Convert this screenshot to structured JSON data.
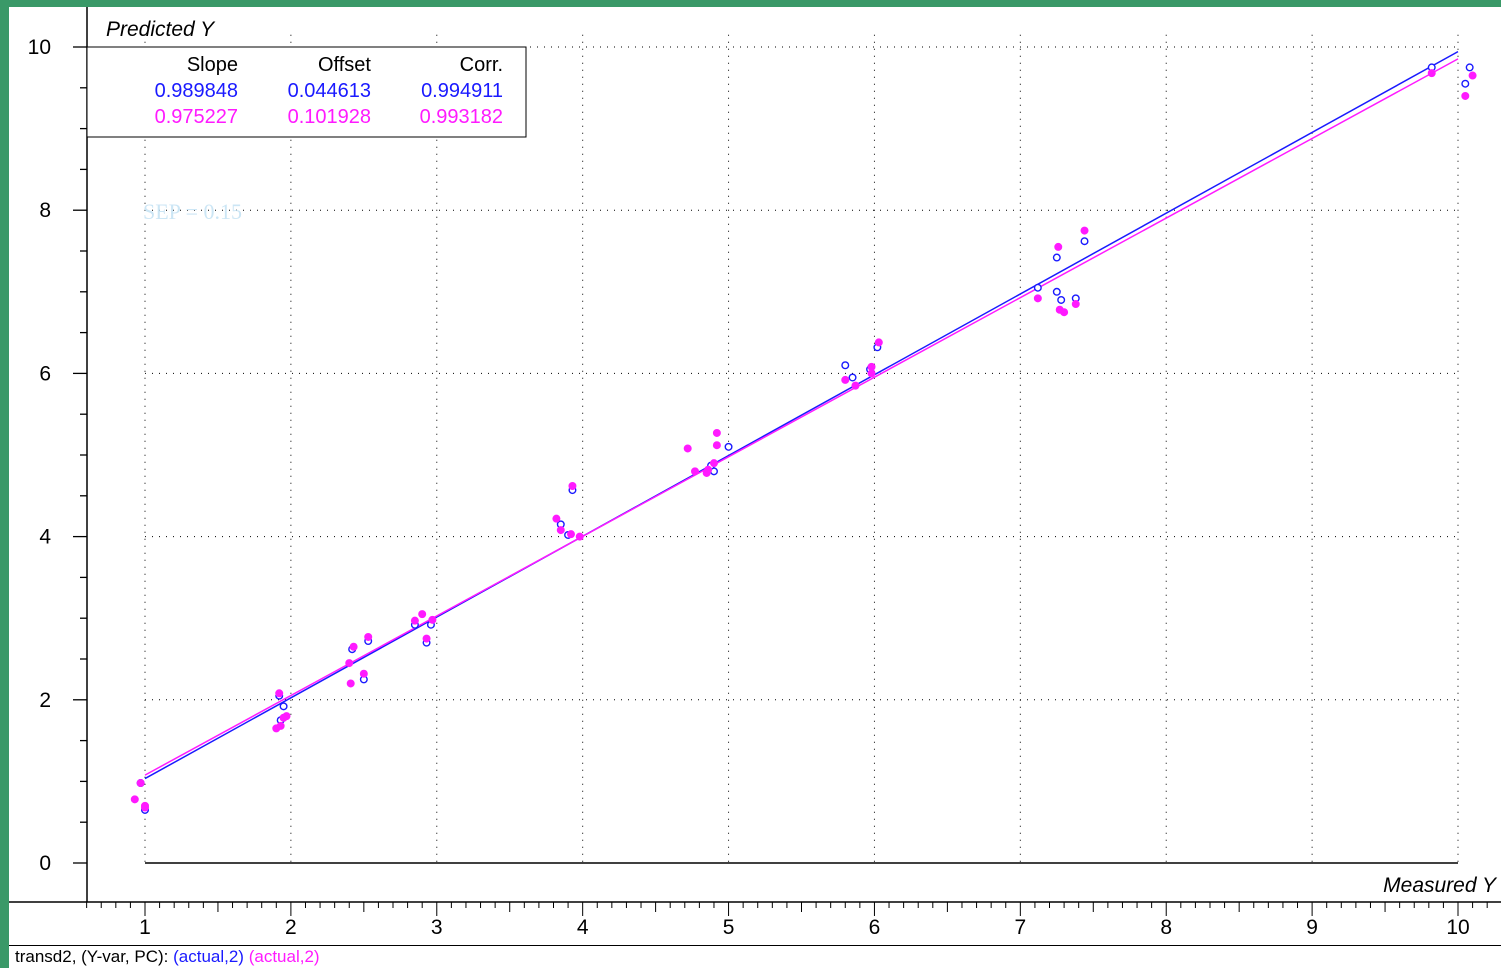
{
  "colors": {
    "background": "#3a9968",
    "series_blue": "#1a1aff",
    "series_magenta": "#ff1aff",
    "sep_text": "#cce6f5"
  },
  "chart_data": {
    "type": "scatter",
    "title": "",
    "xlabel": "Measured Y",
    "ylabel": "Predicted Y",
    "xlim": [
      0.6,
      10.3
    ],
    "ylim": [
      -0.45,
      10.2
    ],
    "xticks": [
      1,
      2,
      3,
      4,
      5,
      6,
      7,
      8,
      9,
      10
    ],
    "yticks": [
      0,
      2,
      4,
      6,
      8,
      10
    ],
    "grid": true,
    "annotation": "SEP = 0.15",
    "stats_table": {
      "headers": [
        "Slope",
        "Offset",
        "Corr."
      ],
      "rows": [
        [
          "0.989848",
          "0.044613",
          "0.994911"
        ],
        [
          "0.975227",
          "0.101928",
          "0.993182"
        ]
      ]
    },
    "series": [
      {
        "color": "#1a1aff",
        "marker": "open-circle",
        "fit": {
          "slope": 0.989848,
          "offset": 0.044613
        },
        "points": [
          [
            0.97,
            0.98
          ],
          [
            1.0,
            0.65
          ],
          [
            1.92,
            2.05
          ],
          [
            1.95,
            1.92
          ],
          [
            1.93,
            1.75
          ],
          [
            2.42,
            2.62
          ],
          [
            2.5,
            2.25
          ],
          [
            2.53,
            2.72
          ],
          [
            2.85,
            2.92
          ],
          [
            2.93,
            2.7
          ],
          [
            2.96,
            2.92
          ],
          [
            3.85,
            4.15
          ],
          [
            3.9,
            4.02
          ],
          [
            3.93,
            4.57
          ],
          [
            4.9,
            4.8
          ],
          [
            4.88,
            4.87
          ],
          [
            5.0,
            5.1
          ],
          [
            5.8,
            6.1
          ],
          [
            5.85,
            5.95
          ],
          [
            5.97,
            6.05
          ],
          [
            6.02,
            6.32
          ],
          [
            7.12,
            7.05
          ],
          [
            7.25,
            7.42
          ],
          [
            7.25,
            7.0
          ],
          [
            7.28,
            6.9
          ],
          [
            7.38,
            6.92
          ],
          [
            7.44,
            7.62
          ],
          [
            9.82,
            9.75
          ],
          [
            10.05,
            9.55
          ],
          [
            10.08,
            9.75
          ]
        ]
      },
      {
        "color": "#ff1aff",
        "marker": "filled-circle",
        "fit": {
          "slope": 0.975227,
          "offset": 0.101928
        },
        "points": [
          [
            0.93,
            0.78
          ],
          [
            0.97,
            0.98
          ],
          [
            1.0,
            0.7
          ],
          [
            1.0,
            0.68
          ],
          [
            1.92,
            2.08
          ],
          [
            1.9,
            1.65
          ],
          [
            1.93,
            1.68
          ],
          [
            1.95,
            1.78
          ],
          [
            1.97,
            1.8
          ],
          [
            2.4,
            2.45
          ],
          [
            2.41,
            2.2
          ],
          [
            2.43,
            2.65
          ],
          [
            2.5,
            2.32
          ],
          [
            2.53,
            2.77
          ],
          [
            2.85,
            2.97
          ],
          [
            2.9,
            3.05
          ],
          [
            2.93,
            2.75
          ],
          [
            2.97,
            2.98
          ],
          [
            3.82,
            4.22
          ],
          [
            3.85,
            4.08
          ],
          [
            3.92,
            4.03
          ],
          [
            3.93,
            4.62
          ],
          [
            3.98,
            4.0
          ],
          [
            4.72,
            5.08
          ],
          [
            4.77,
            4.8
          ],
          [
            4.85,
            4.78
          ],
          [
            4.86,
            4.82
          ],
          [
            4.9,
            4.9
          ],
          [
            4.92,
            5.12
          ],
          [
            4.92,
            5.27
          ],
          [
            5.8,
            5.92
          ],
          [
            5.87,
            5.85
          ],
          [
            5.98,
            6.0
          ],
          [
            5.98,
            6.08
          ],
          [
            6.03,
            6.38
          ],
          [
            7.12,
            6.92
          ],
          [
            7.26,
            7.55
          ],
          [
            7.27,
            6.78
          ],
          [
            7.3,
            6.75
          ],
          [
            7.38,
            6.85
          ],
          [
            7.44,
            7.75
          ],
          [
            9.82,
            9.68
          ],
          [
            10.05,
            9.4
          ],
          [
            10.1,
            9.65
          ]
        ]
      }
    ]
  },
  "status_bar": {
    "prefix": "transd2, (Y-var, PC):",
    "series_1": "(actual,2)",
    "series_2": "(actual,2)"
  }
}
